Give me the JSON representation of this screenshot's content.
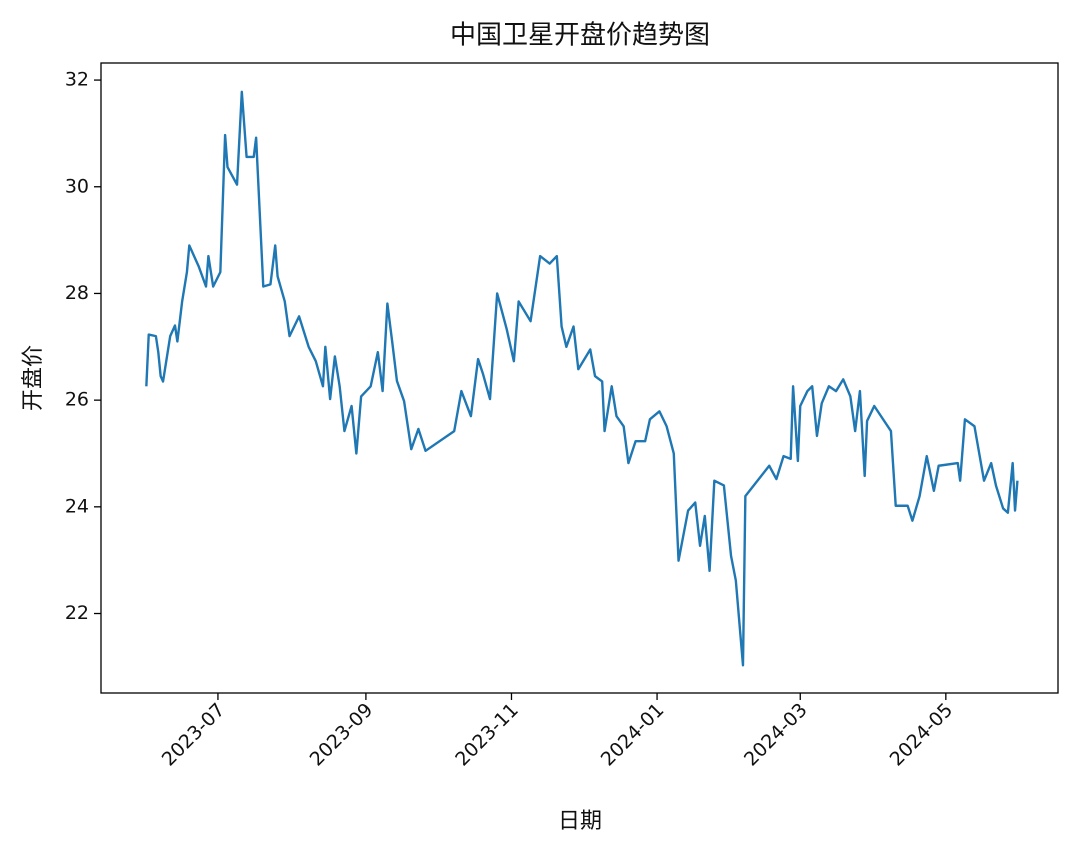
{
  "chart_data": {
    "type": "line",
    "title": "中国卫星开盘价趋势图",
    "x_label": "日期",
    "y_label": "开盘价",
    "xlim": [
      19490,
      19891
    ],
    "ylim": [
      20.51,
      32.32
    ],
    "xticks": [
      {
        "value": 19539,
        "label": "2023-07"
      },
      {
        "value": 19601,
        "label": "2023-09"
      },
      {
        "value": 19662,
        "label": "2023-11"
      },
      {
        "value": 19723,
        "label": "2024-01"
      },
      {
        "value": 19783,
        "label": "2024-03"
      },
      {
        "value": 19844,
        "label": "2024-05"
      }
    ],
    "yticks": [
      22,
      24,
      26,
      28,
      30,
      32
    ],
    "grid": false,
    "series": [
      {
        "name": "开盘价",
        "color": "#1f77b4",
        "x": [
          19509,
          19510,
          19513,
          19514,
          19515,
          19516,
          19519,
          19521,
          19522,
          19524,
          19526,
          19527,
          19529,
          19531,
          19534,
          19535,
          19537,
          19540,
          19542,
          19543,
          19547,
          19549,
          19551,
          19554,
          19555,
          19558,
          19561,
          19563,
          19564,
          19567,
          19569,
          19573,
          19577,
          19580,
          19583,
          19584,
          19586,
          19588,
          19590,
          19592,
          19595,
          19597,
          19599,
          19603,
          19606,
          19608,
          19610,
          19612,
          19614,
          19617,
          19620,
          19623,
          19626,
          19638,
          19641,
          19645,
          19648,
          19650,
          19653,
          19656,
          19660,
          19663,
          19665,
          19670,
          19674,
          19678,
          19681,
          19683,
          19685,
          19688,
          19690,
          19695,
          19697,
          19700,
          19701,
          19704,
          19706,
          19709,
          19711,
          19714,
          19718,
          19720,
          19724,
          19727,
          19730,
          19732,
          19736,
          19739,
          19741,
          19743,
          19745,
          19747,
          19751,
          19754,
          19756,
          19759,
          19760,
          19770,
          19773,
          19776,
          19779,
          19780,
          19782,
          19783,
          19786,
          19788,
          19790,
          19792,
          19795,
          19798,
          19801,
          19804,
          19806,
          19808,
          19810,
          19811,
          19814,
          19821,
          19823,
          19828,
          19830,
          19833,
          19836,
          19839,
          19841,
          19849,
          19850,
          19852,
          19856,
          19860,
          19863,
          19865,
          19868,
          19870,
          19872,
          19873,
          19874
        ],
        "values": [
          26.26,
          27.23,
          27.2,
          26.9,
          26.45,
          26.35,
          27.2,
          27.4,
          27.1,
          27.85,
          28.4,
          28.9,
          28.7,
          28.5,
          28.13,
          28.7,
          28.13,
          28.4,
          30.97,
          30.37,
          30.04,
          31.78,
          30.56,
          30.56,
          30.92,
          28.13,
          28.17,
          28.9,
          28.32,
          27.85,
          27.2,
          27.57,
          27.0,
          26.73,
          26.26,
          27.0,
          26.02,
          26.82,
          26.26,
          25.42,
          25.89,
          25.0,
          26.07,
          26.26,
          26.9,
          26.17,
          27.81,
          27.1,
          26.36,
          25.98,
          25.08,
          25.46,
          25.05,
          25.42,
          26.17,
          25.7,
          26.77,
          26.5,
          26.02,
          28.0,
          27.33,
          26.73,
          27.85,
          27.48,
          28.7,
          28.56,
          28.7,
          27.38,
          27.0,
          27.38,
          26.58,
          26.95,
          26.45,
          26.35,
          25.42,
          26.26,
          25.7,
          25.51,
          24.82,
          25.23,
          25.23,
          25.64,
          25.79,
          25.51,
          25.0,
          22.99,
          23.93,
          24.08,
          23.27,
          23.83,
          22.8,
          24.49,
          24.4,
          23.08,
          22.62,
          21.03,
          24.2,
          24.77,
          24.52,
          24.95,
          24.9,
          26.26,
          24.86,
          25.89,
          26.17,
          26.26,
          25.33,
          25.94,
          26.26,
          26.17,
          26.39,
          26.07,
          25.42,
          26.17,
          24.58,
          25.61,
          25.89,
          25.42,
          24.02,
          24.02,
          23.74,
          24.2,
          24.95,
          24.3,
          24.77,
          24.82,
          24.49,
          25.64,
          25.51,
          24.49,
          24.82,
          24.4,
          23.97,
          23.89,
          24.82,
          23.93,
          24.49
        ]
      }
    ]
  }
}
